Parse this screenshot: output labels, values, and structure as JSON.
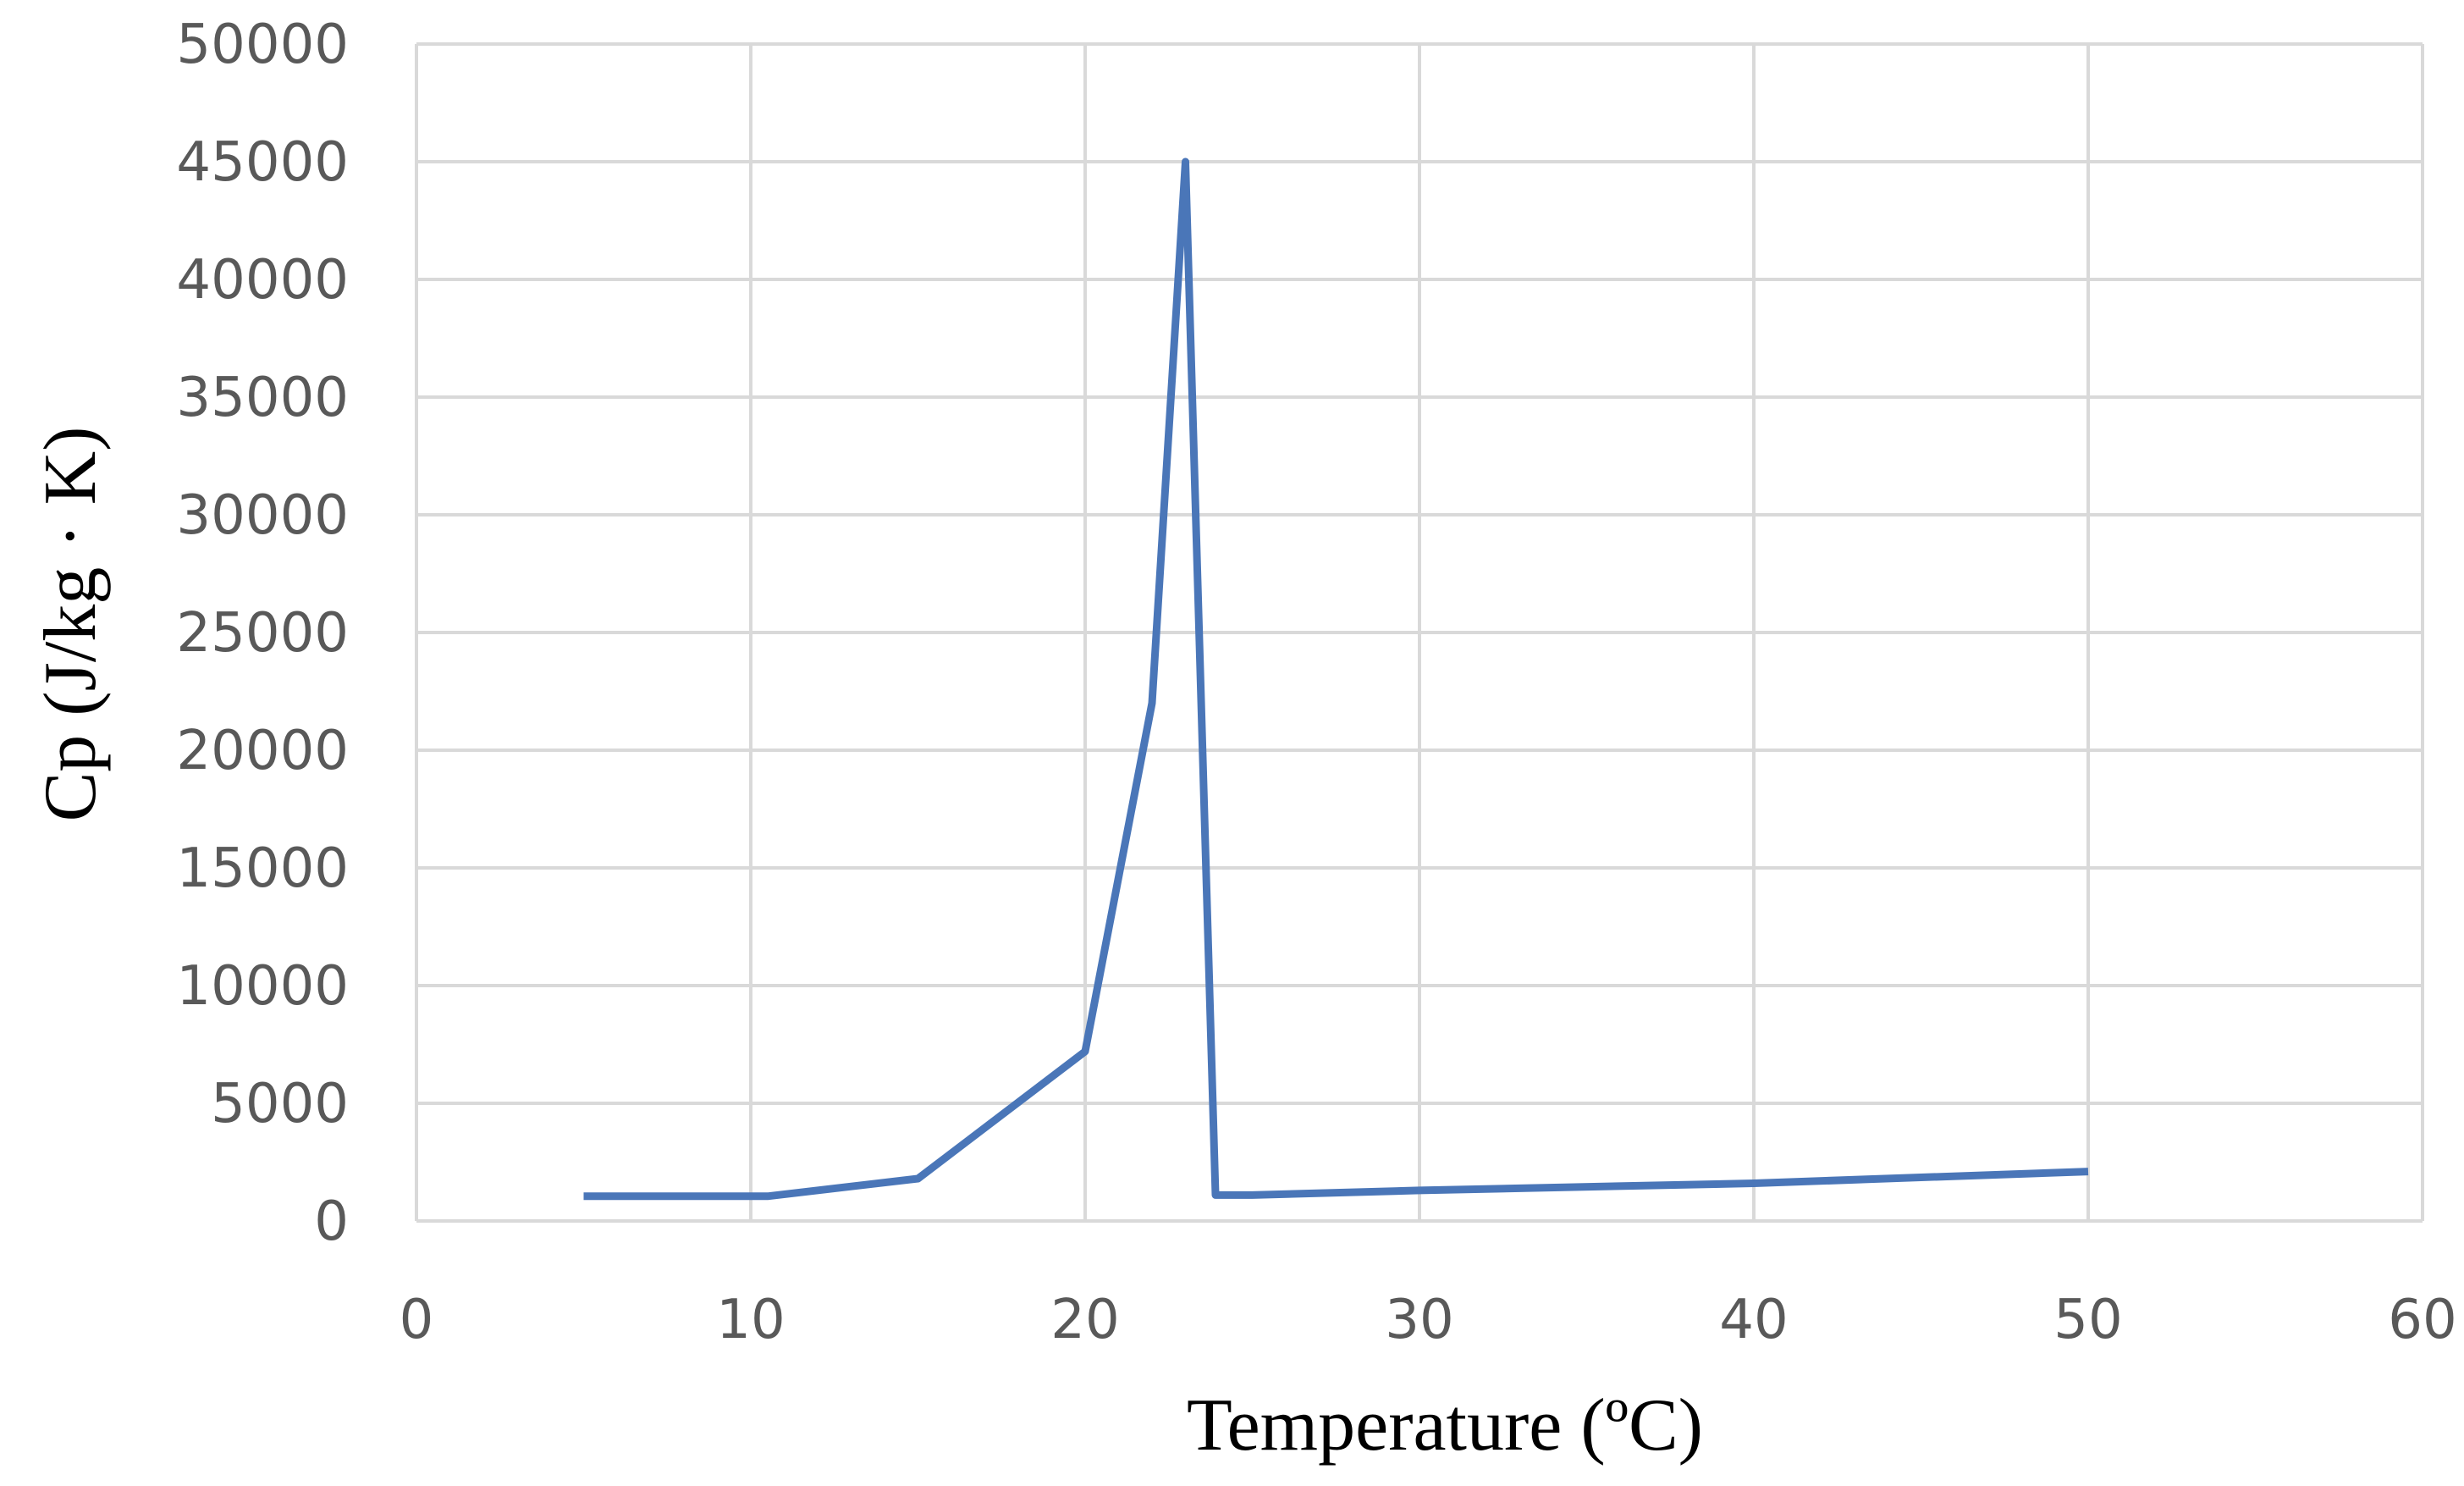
{
  "chart_data": {
    "type": "line",
    "title": "",
    "xlabel": "Temperature (ºC)",
    "ylabel": "Cp (J/kg · K)",
    "xlim": [
      0,
      60
    ],
    "ylim": [
      0,
      50000
    ],
    "x_ticks": [
      0,
      10,
      20,
      30,
      40,
      50,
      60
    ],
    "y_ticks": [
      0,
      5000,
      10000,
      15000,
      20000,
      25000,
      30000,
      35000,
      40000,
      45000,
      50000
    ],
    "x_tick_labels": [
      "0",
      "10",
      "20",
      "30",
      "40",
      "50",
      "60"
    ],
    "y_tick_labels": [
      "0",
      "5000",
      "10000",
      "15000",
      "20000",
      "25000",
      "30000",
      "35000",
      "40000",
      "45000",
      "50000"
    ],
    "grid": true,
    "legend": "none",
    "series": [
      {
        "color": "#4a76b8",
        "x": [
          5,
          10.5,
          15,
          20,
          22,
          23,
          23.9,
          25,
          30,
          40,
          50
        ],
        "y": [
          1050,
          1050,
          1800,
          7200,
          22000,
          45000,
          1100,
          1100,
          1300,
          1600,
          2100
        ]
      }
    ]
  }
}
